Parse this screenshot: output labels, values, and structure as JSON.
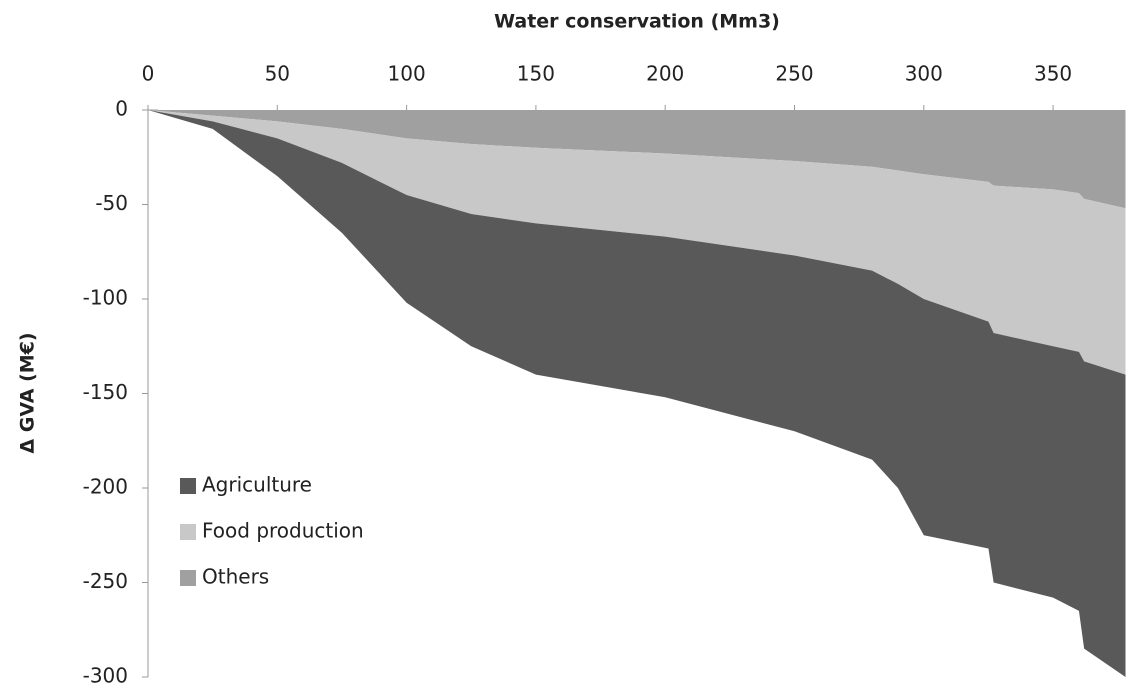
{
  "chart_data": {
    "type": "stacked-area",
    "x_label": "Water conservation (Mm3)",
    "y_label": "Δ GVA (M€)",
    "x": [
      0,
      25,
      50,
      75,
      100,
      125,
      150,
      200,
      250,
      280,
      290,
      300,
      325,
      327,
      350,
      360,
      362,
      378
    ],
    "series": [
      {
        "name": "Agriculture",
        "color": "#595959",
        "values": [
          0,
          -4,
          -20,
          -37,
          -57,
          -70,
          -80,
          -85,
          -93,
          -100,
          -108,
          -125,
          -120,
          -132,
          -133,
          -137,
          -152,
          -160
        ]
      },
      {
        "name": "Food production",
        "color": "#c8c8c8",
        "values": [
          0,
          -3,
          -9,
          -18,
          -30,
          -37,
          -40,
          -44,
          -50,
          -55,
          -60,
          -66,
          -74,
          -78,
          -83,
          -84,
          -86,
          -88
        ]
      },
      {
        "name": "Others",
        "color": "#a0a0a0",
        "values": [
          0,
          -3,
          -6,
          -10,
          -15,
          -18,
          -20,
          -23,
          -27,
          -30,
          -32,
          -34,
          -38,
          -40,
          -42,
          -44,
          -47,
          -52
        ]
      }
    ],
    "xlim": [
      0,
      378
    ],
    "xticks": [
      0,
      50,
      100,
      150,
      200,
      250,
      300,
      350
    ],
    "ylim": [
      -300,
      0
    ],
    "yticks": [
      0,
      -50,
      -100,
      -150,
      -200,
      -250,
      -300
    ],
    "legend": "lower-left"
  }
}
